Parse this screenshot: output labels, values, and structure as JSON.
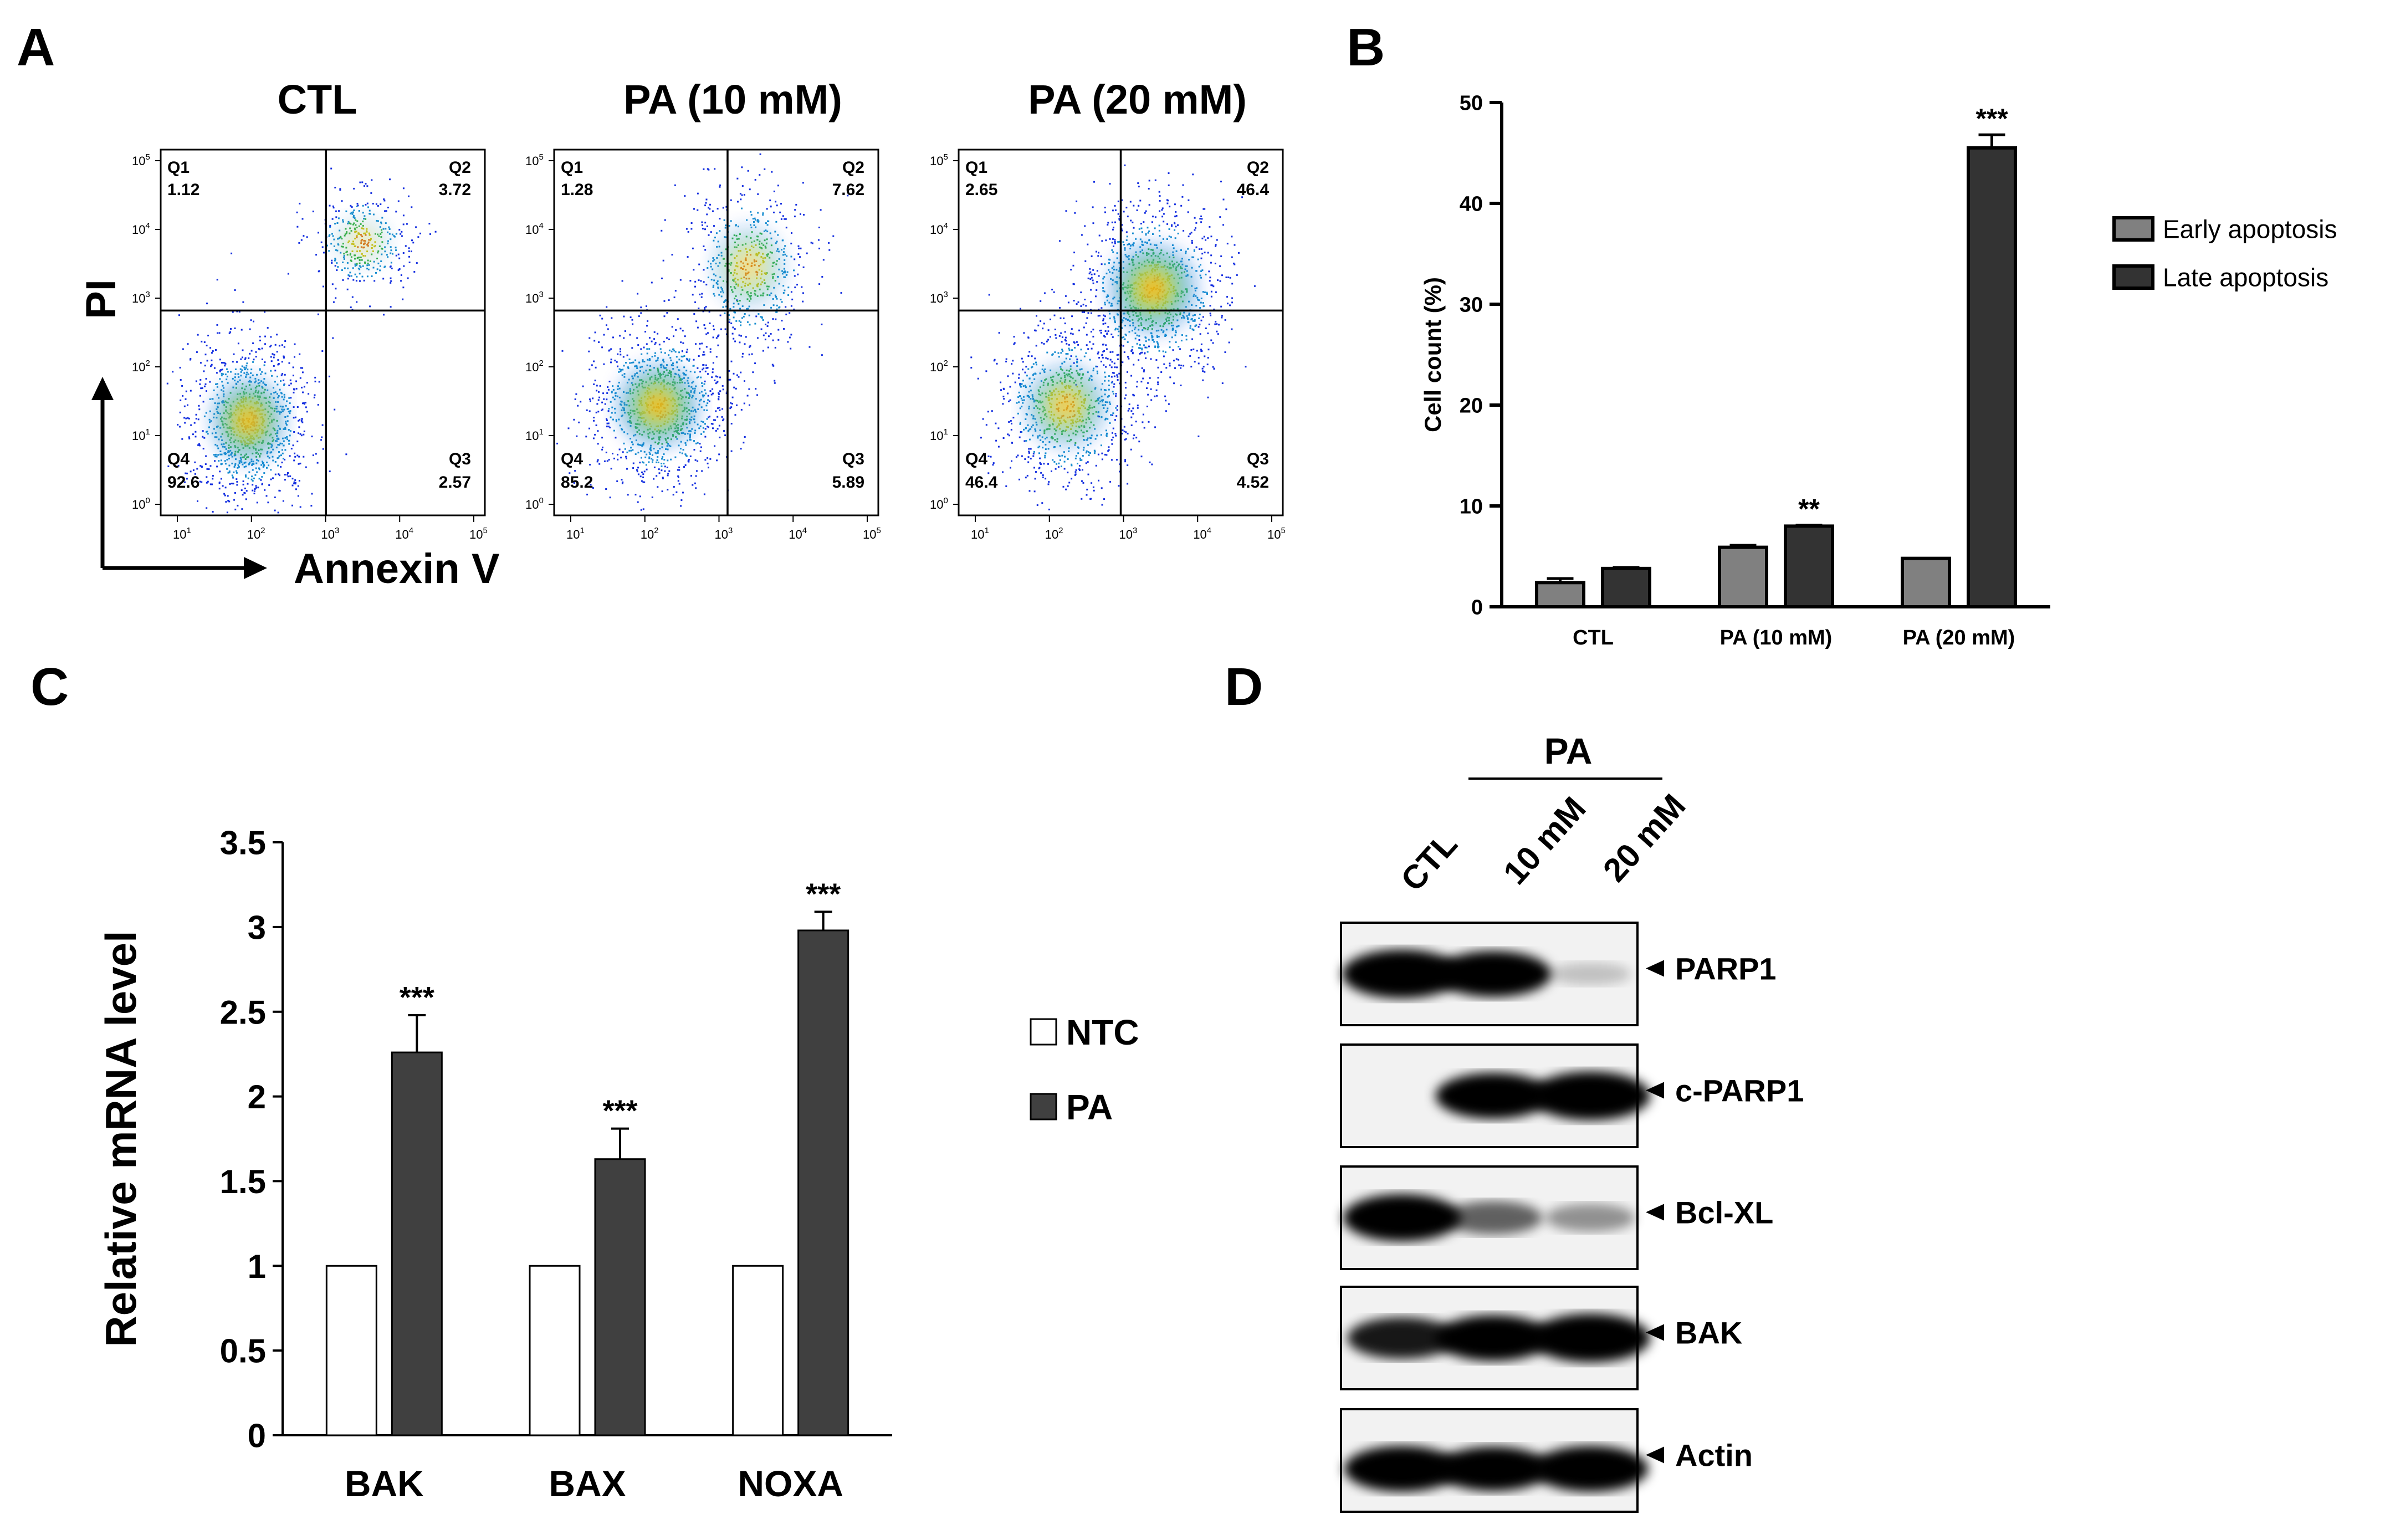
{
  "panels": {
    "A": {
      "letter": "A",
      "x_axis_label": "Annexin V",
      "y_axis_label": "PI",
      "tick_exponents": [
        "1",
        "2",
        "3",
        "4",
        "5"
      ],
      "tick_base": "10",
      "y_tick_exponents": [
        "0",
        "1",
        "2",
        "3",
        "4",
        "5"
      ],
      "plots": [
        {
          "title": "CTL",
          "q1": {
            "label": "Q1",
            "value": "1.12"
          },
          "q2": {
            "label": "Q2",
            "value": "3.72"
          },
          "q3": {
            "label": "Q3",
            "value": "2.57"
          },
          "q4": {
            "label": "Q4",
            "value": "92.6"
          }
        },
        {
          "title": "PA (10 mM)",
          "q1": {
            "label": "Q1",
            "value": "1.28"
          },
          "q2": {
            "label": "Q2",
            "value": "7.62"
          },
          "q3": {
            "label": "Q3",
            "value": "5.89"
          },
          "q4": {
            "label": "Q4",
            "value": "85.2"
          }
        },
        {
          "title": "PA (20 mM)",
          "q1": {
            "label": "Q1",
            "value": "2.65"
          },
          "q2": {
            "label": "Q2",
            "value": "46.4"
          },
          "q3": {
            "label": "Q3",
            "value": "4.52"
          },
          "q4": {
            "label": "Q4",
            "value": "46.4"
          }
        }
      ]
    },
    "B": {
      "letter": "B"
    },
    "C": {
      "letter": "C"
    },
    "D": {
      "letter": "D",
      "header": "PA",
      "lanes": [
        "CTL",
        "10 mM",
        "20 mM"
      ],
      "bands": [
        {
          "label": "PARP1",
          "intensity": [
            1.0,
            0.9,
            0.05
          ]
        },
        {
          "label": "c-PARP1",
          "intensity": [
            0.0,
            0.9,
            1.0
          ]
        },
        {
          "label": "Bcl-XL",
          "intensity": [
            0.95,
            0.45,
            0.25
          ]
        },
        {
          "label": "BAK",
          "intensity": [
            0.75,
            0.9,
            1.0
          ]
        },
        {
          "label": "Actin",
          "intensity": [
            0.9,
            0.85,
            0.9
          ]
        }
      ]
    }
  },
  "chart_data": [
    {
      "type": "bar",
      "panel": "B",
      "categories": [
        "CTL",
        "PA (10 mM)",
        "PA (20 mM)"
      ],
      "ylabel": "Cell count (%)",
      "ylim": [
        0,
        50
      ],
      "yticks": [
        0,
        10,
        20,
        30,
        40,
        50
      ],
      "legend_position": "right",
      "series": [
        {
          "name": "Early apoptosis",
          "color": "#808080",
          "values": [
            2.4,
            5.9,
            4.8
          ],
          "errors": [
            0.4,
            0.2,
            0.0
          ]
        },
        {
          "name": "Late apoptosis",
          "color": "#333333",
          "values": [
            3.8,
            8.0,
            45.5
          ],
          "errors": [
            0.1,
            0.1,
            1.3
          ]
        }
      ],
      "annotations": [
        {
          "category": "PA (10 mM)",
          "series": "Late apoptosis",
          "text": "**"
        },
        {
          "category": "PA (20 mM)",
          "series": "Late apoptosis",
          "text": "***"
        }
      ]
    },
    {
      "type": "bar",
      "panel": "C",
      "categories": [
        "BAK",
        "BAX",
        "NOXA"
      ],
      "ylabel": "Relative mRNA level",
      "ylim": [
        0,
        3.5
      ],
      "yticks": [
        "0",
        "0.5",
        "1",
        "1.5",
        "2",
        "2.5",
        "3",
        "3.5"
      ],
      "legend_position": "right",
      "series": [
        {
          "name": "NTC",
          "color": "#ffffff",
          "values": [
            1,
            1,
            1
          ],
          "errors": [
            0,
            0,
            0
          ]
        },
        {
          "name": "PA",
          "color": "#404040",
          "values": [
            2.26,
            1.63,
            2.98
          ],
          "errors": [
            0.22,
            0.18,
            0.11
          ]
        }
      ],
      "annotations": [
        {
          "category": "BAK",
          "series": "PA",
          "text": "***"
        },
        {
          "category": "BAX",
          "series": "PA",
          "text": "***"
        },
        {
          "category": "NOXA",
          "series": "PA",
          "text": "***"
        }
      ]
    }
  ]
}
